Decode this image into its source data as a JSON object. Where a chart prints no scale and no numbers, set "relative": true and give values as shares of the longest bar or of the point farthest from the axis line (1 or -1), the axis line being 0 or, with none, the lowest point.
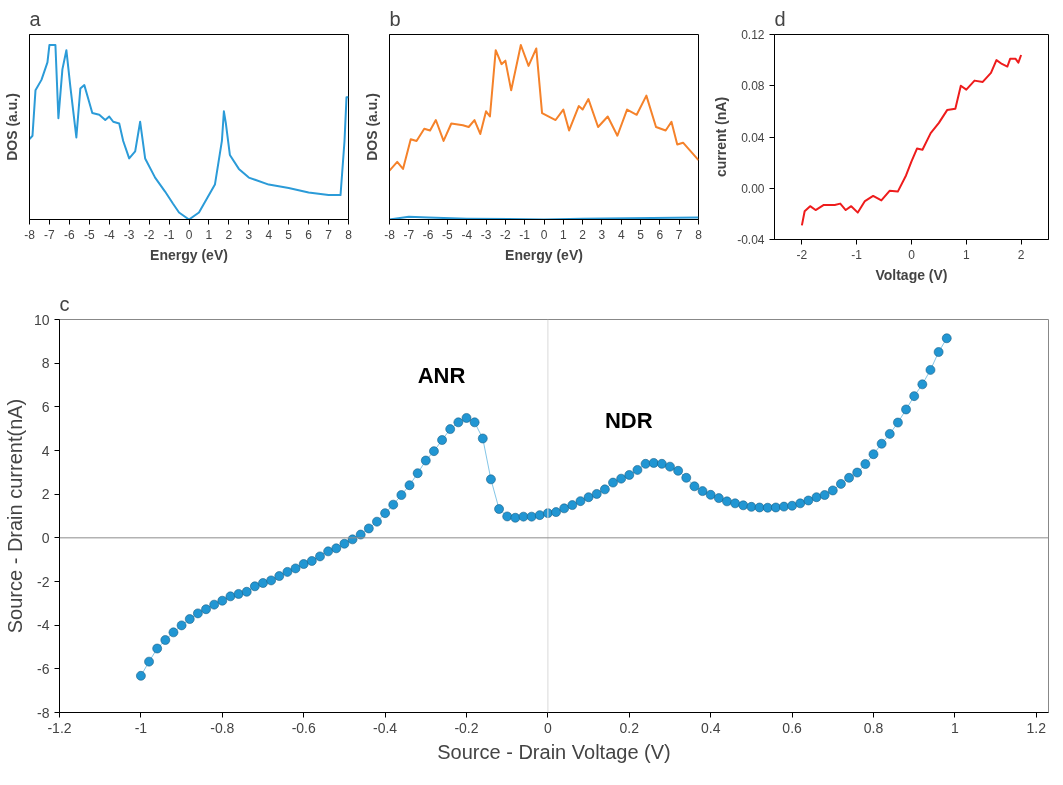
{
  "chart_data": [
    {
      "type": "line",
      "title": "a",
      "xlabel": "Energy (eV)",
      "ylabel": "DOS (a.u.)",
      "relative": true,
      "tick_labels": "x",
      "xlim": [
        -8,
        8
      ],
      "xticks": [
        -8,
        -7,
        -6,
        -5,
        -4,
        -3,
        -2,
        -1,
        0,
        1,
        2,
        3,
        4,
        5,
        6,
        7,
        8
      ],
      "series": [
        {
          "color": "#2b9bd8",
          "x": [
            -8,
            -7.85,
            -7.7,
            -7.4,
            -7.1,
            -7,
            -6.7,
            -6.55,
            -6.35,
            -6.15,
            -5.95,
            -5.65,
            -5.45,
            -5.25,
            -5.05,
            -4.85,
            -4.5,
            -4.2,
            -4,
            -3.8,
            -3.5,
            -3.3,
            -3,
            -2.7,
            -2.45,
            -2.2,
            -1.7,
            -1.2,
            -0.8,
            -0.5,
            0,
            0.5,
            1.3,
            1.65,
            1.75,
            1.85,
            2.05,
            2.5,
            3,
            4,
            5,
            6,
            7,
            7.6,
            7.8,
            7.9,
            8
          ],
          "values": [
            0.46,
            0.48,
            0.74,
            0.8,
            0.9,
            1,
            1,
            0.58,
            0.86,
            0.97,
            0.76,
            0.47,
            0.75,
            0.77,
            0.69,
            0.61,
            0.6,
            0.57,
            0.59,
            0.56,
            0.55,
            0.45,
            0.35,
            0.39,
            0.56,
            0.35,
            0.24,
            0.16,
            0.09,
            0.04,
            0,
            0.04,
            0.2,
            0.45,
            0.62,
            0.55,
            0.37,
            0.29,
            0.24,
            0.2,
            0.18,
            0.155,
            0.14,
            0.14,
            0.45,
            0.7,
            0.7
          ]
        }
      ]
    },
    {
      "type": "line",
      "title": "b",
      "xlabel": "Energy (eV)",
      "ylabel": "DOS (a.u.)",
      "relative": true,
      "tick_labels": "x",
      "xlim": [
        -8,
        8
      ],
      "xticks": [
        -8,
        -7,
        -6,
        -5,
        -4,
        -3,
        -2,
        -1,
        0,
        1,
        2,
        3,
        4,
        5,
        6,
        7,
        8
      ],
      "series": [
        {
          "color": "#f5822a",
          "x": [
            -8,
            -7.6,
            -7.3,
            -6.9,
            -6.6,
            -6.2,
            -5.9,
            -5.6,
            -5.2,
            -4.8,
            -4.2,
            -3.9,
            -3.6,
            -3.3,
            -3,
            -2.8,
            -2.5,
            -2.2,
            -2,
            -1.7,
            -1.2,
            -0.8,
            -0.4,
            -0.1,
            0.6,
            1,
            1.3,
            1.8,
            2,
            2.3,
            2.8,
            3.3,
            3.8,
            4.3,
            4.8,
            5.3,
            5.8,
            6.3,
            6.6,
            6.9,
            7.2,
            7.6,
            8
          ],
          "values": [
            0.28,
            0.33,
            0.29,
            0.46,
            0.45,
            0.52,
            0.51,
            0.57,
            0.45,
            0.55,
            0.54,
            0.53,
            0.57,
            0.49,
            0.62,
            0.59,
            0.97,
            0.89,
            0.91,
            0.74,
            1,
            0.88,
            0.98,
            0.61,
            0.57,
            0.63,
            0.51,
            0.65,
            0.63,
            0.69,
            0.53,
            0.59,
            0.48,
            0.63,
            0.6,
            0.71,
            0.53,
            0.51,
            0.56,
            0.43,
            0.44,
            0.39,
            0.34
          ]
        },
        {
          "color": "#2b9bd8",
          "x": [
            -8,
            -7,
            -6,
            -4,
            0,
            2,
            8
          ],
          "values": [
            0,
            0.016,
            0.011,
            0.005,
            0,
            0.005,
            0.011
          ]
        }
      ]
    },
    {
      "type": "line",
      "title": "d",
      "xlabel": "Voltage (V)",
      "ylabel": "current (nA)",
      "xlim": [
        -2.5,
        2.5
      ],
      "xticks": [
        -2,
        -1,
        0,
        1,
        2
      ],
      "ylim": [
        -0.04,
        0.12
      ],
      "yticks": [
        {
          "value": -0.04,
          "label": "-0.04"
        },
        {
          "value": 0,
          "label": "0.00"
        },
        {
          "value": 0.04,
          "label": "0.04"
        },
        {
          "value": 0.08,
          "label": "0.08"
        },
        {
          "value": 0.12,
          "label": "0.12"
        }
      ],
      "series": [
        {
          "color": "#ee1c1c",
          "x": [
            -2,
            -1.95,
            -1.85,
            -1.75,
            -1.6,
            -1.4,
            -1.3,
            -1.2,
            -1.1,
            -0.98,
            -0.85,
            -0.7,
            -0.55,
            -0.4,
            -0.25,
            -0.1,
            0,
            0.1,
            0.2,
            0.35,
            0.5,
            0.65,
            0.8,
            0.9,
            1,
            1.15,
            1.3,
            1.45,
            1.55,
            1.65,
            1.75,
            1.8,
            1.9,
            1.95,
            2
          ],
          "values": [
            -0.029,
            -0.018,
            -0.014,
            -0.017,
            -0.013,
            -0.013,
            -0.012,
            -0.017,
            -0.014,
            -0.019,
            -0.01,
            -0.006,
            -0.0095,
            -0.002,
            -0.0026,
            0.01,
            0.021,
            0.031,
            0.03,
            0.043,
            0.051,
            0.061,
            0.062,
            0.08,
            0.077,
            0.084,
            0.083,
            0.09,
            0.1,
            0.097,
            0.095,
            0.101,
            0.101,
            0.098,
            0.104
          ]
        }
      ]
    },
    {
      "type": "line",
      "title": "c",
      "xlabel": "Source - Drain Voltage (V)",
      "ylabel": "Source - Drain current(nA)",
      "marker": "circle",
      "xlim": [
        -1.2,
        1.23
      ],
      "xticks": [
        -1.2,
        -1,
        -0.8,
        -0.6,
        -0.4,
        -0.2,
        0,
        0.2,
        0.4,
        0.6,
        0.8,
        1,
        1.2
      ],
      "ylim": [
        -8,
        10
      ],
      "yticks": [
        -8,
        -6,
        -4,
        -2,
        0,
        2,
        4,
        6,
        8,
        10
      ],
      "ref_lines": [
        {
          "axis": "x",
          "value": 0,
          "color": "#d9d9d9"
        },
        {
          "axis": "y",
          "value": 0,
          "color": "#8c8c8c"
        }
      ],
      "annotations": [
        {
          "text": "ANR",
          "x": -0.2,
          "y": 5.49
        },
        {
          "text": "NDR",
          "x": 0.26,
          "y": 3.43
        }
      ],
      "series": [
        {
          "color": "#2196d3",
          "x": [
            -1,
            -0.98,
            -0.96,
            -0.94,
            -0.92,
            -0.9,
            -0.88,
            -0.86,
            -0.84,
            -0.82,
            -0.8,
            -0.78,
            -0.76,
            -0.74,
            -0.72,
            -0.7,
            -0.68,
            -0.66,
            -0.64,
            -0.62,
            -0.6,
            -0.58,
            -0.56,
            -0.54,
            -0.52,
            -0.5,
            -0.48,
            -0.46,
            -0.44,
            -0.42,
            -0.4,
            -0.38,
            -0.36,
            -0.34,
            -0.32,
            -0.3,
            -0.28,
            -0.26,
            -0.24,
            -0.22,
            -0.2,
            -0.18,
            -0.16,
            -0.14,
            -0.12,
            -0.1,
            -0.08,
            -0.06,
            -0.04,
            -0.02,
            0,
            0.02,
            0.04,
            0.06,
            0.08,
            0.1,
            0.12,
            0.14,
            0.16,
            0.18,
            0.2,
            0.22,
            0.24,
            0.26,
            0.28,
            0.3,
            0.32,
            0.34,
            0.36,
            0.38,
            0.4,
            0.42,
            0.44,
            0.46,
            0.48,
            0.5,
            0.52,
            0.54,
            0.56,
            0.58,
            0.6,
            0.62,
            0.64,
            0.66,
            0.68,
            0.7,
            0.72,
            0.74,
            0.76,
            0.78,
            0.8,
            0.82,
            0.84,
            0.86,
            0.88,
            0.9,
            0.92,
            0.94,
            0.96,
            0.98
          ],
          "values": [
            -6.32,
            -5.67,
            -5.07,
            -4.68,
            -4.33,
            -4.01,
            -3.72,
            -3.46,
            -3.27,
            -3.06,
            -2.88,
            -2.68,
            -2.57,
            -2.47,
            -2.22,
            -2.07,
            -1.95,
            -1.75,
            -1.56,
            -1.4,
            -1.2,
            -1.06,
            -0.85,
            -0.62,
            -0.48,
            -0.27,
            -0.07,
            0.15,
            0.43,
            0.74,
            1.13,
            1.52,
            1.96,
            2.41,
            2.96,
            3.54,
            3.97,
            4.48,
            4.98,
            5.29,
            5.49,
            5.29,
            4.55,
            2.68,
            1.32,
            0.98,
            0.92,
            0.97,
            0.97,
            1.04,
            1.13,
            1.18,
            1.35,
            1.5,
            1.68,
            1.86,
            2.01,
            2.22,
            2.53,
            2.71,
            2.88,
            3.11,
            3.39,
            3.43,
            3.39,
            3.26,
            3.07,
            2.75,
            2.36,
            2.14,
            1.97,
            1.82,
            1.67,
            1.58,
            1.49,
            1.42,
            1.39,
            1.38,
            1.39,
            1.43,
            1.47,
            1.58,
            1.71,
            1.86,
            1.96,
            2.17,
            2.47,
            2.75,
            2.99,
            3.38,
            3.83,
            4.31,
            4.76,
            5.28,
            5.88,
            6.49,
            7.03,
            7.69,
            8.51,
            9.14
          ]
        }
      ]
    }
  ]
}
